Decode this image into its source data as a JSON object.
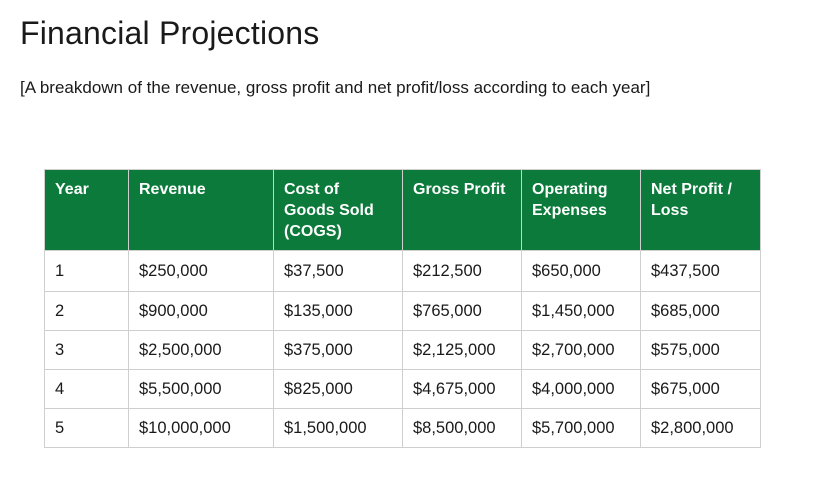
{
  "document": {
    "title": "Financial Projections",
    "subtitle": "[A breakdown of the revenue, gross profit and net profit/loss according to each year]"
  },
  "table": {
    "headers": [
      "Year",
      "Revenue",
      "Cost of Goods Sold (COGS)",
      "Gross Profit",
      "Operating Expenses",
      "Net Profit / Loss"
    ],
    "rows": [
      [
        "1",
        "$250,000",
        "$37,500",
        "$212,500",
        "$650,000",
        "$437,500"
      ],
      [
        "2",
        "$900,000",
        "$135,000",
        "$765,000",
        "$1,450,000",
        "$685,000"
      ],
      [
        "3",
        "$2,500,000",
        "$375,000",
        "$2,125,000",
        "$2,700,000",
        "$575,000"
      ],
      [
        "4",
        "$5,500,000",
        "$825,000",
        "$4,675,000",
        "$4,000,000",
        "$675,000"
      ],
      [
        "5",
        "$10,000,000",
        "$1,500,000",
        "$8,500,000",
        "$5,700,000",
        "$2,800,000"
      ]
    ]
  },
  "colors": {
    "header_background": "#0b7a3a",
    "header_text": "#ffffff",
    "border": "#cfcfcf"
  }
}
